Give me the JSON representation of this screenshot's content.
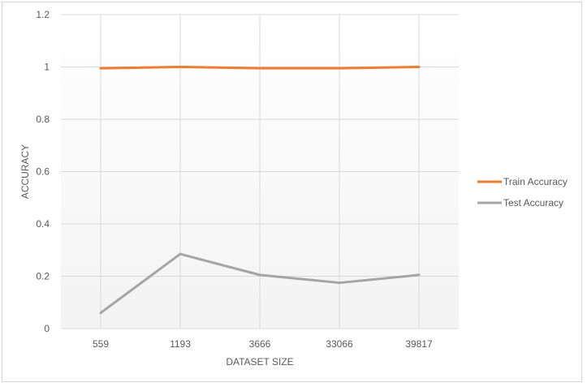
{
  "chart_data": {
    "type": "line",
    "categories": [
      "559",
      "1193",
      "3666",
      "33066",
      "39817"
    ],
    "series": [
      {
        "name": "Train Accuracy",
        "color": "#ed7d31",
        "values": [
          0.995,
          1.0,
          0.995,
          0.995,
          1.0
        ]
      },
      {
        "name": "Test Accuracy",
        "color": "#a5a5a5",
        "values": [
          0.06,
          0.285,
          0.205,
          0.175,
          0.205
        ]
      }
    ],
    "xlabel": "DATASET SIZE",
    "ylabel": "ACCURACY",
    "ylim": [
      0,
      1.2
    ],
    "yticks": [
      "0",
      "0.2",
      "0.4",
      "0.6",
      "0.8",
      "1",
      "1.2"
    ],
    "grid": true,
    "legend_position": "right"
  }
}
